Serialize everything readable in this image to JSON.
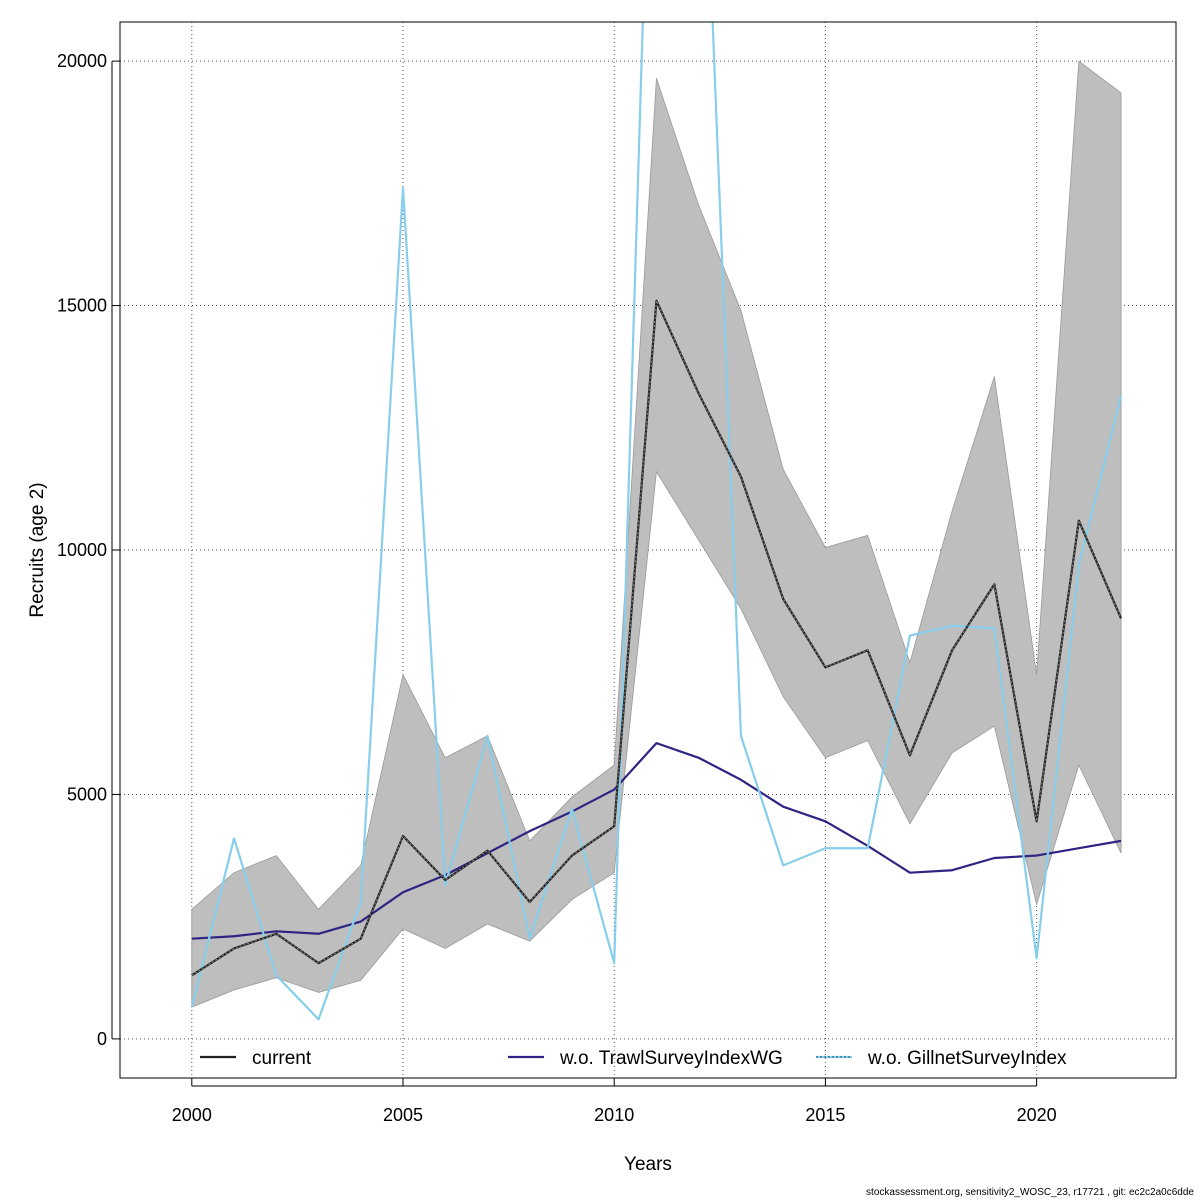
{
  "chart_data": {
    "type": "line",
    "xlabel": "Years",
    "ylabel": "Recruits (age 2)",
    "xlim": [
      1998.3,
      2023.3
    ],
    "ylim": [
      -800,
      20800
    ],
    "x_ticks": [
      2000,
      2005,
      2010,
      2015,
      2020
    ],
    "y_ticks": [
      0,
      5000,
      10000,
      15000,
      20000
    ],
    "grid": true,
    "legend_position": "bottom",
    "x": [
      2000,
      2001,
      2002,
      2003,
      2004,
      2005,
      2006,
      2007,
      2008,
      2009,
      2010,
      2011,
      2012,
      2013,
      2014,
      2015,
      2016,
      2017,
      2018,
      2019,
      2020,
      2021,
      2022
    ],
    "confidence_band": {
      "color": "#bebebe",
      "lower": [
        650,
        1000,
        1250,
        950,
        1200,
        2250,
        1850,
        2350,
        2000,
        2850,
        3400,
        11600,
        10200,
        8800,
        7000,
        5750,
        6100,
        4400,
        5850,
        6400,
        2750,
        5600,
        3800
      ],
      "upper": [
        2650,
        3400,
        3750,
        2650,
        3550,
        7450,
        5750,
        6200,
        4050,
        4950,
        5600,
        19650,
        17050,
        14900,
        11650,
        10050,
        10300,
        7700,
        10800,
        13550,
        7450,
        20000,
        19350
      ]
    },
    "series": [
      {
        "name": "current",
        "color": "#222222",
        "values": [
          1300,
          1850,
          2150,
          1550,
          2050,
          4150,
          3250,
          3850,
          2800,
          3750,
          4350,
          15100,
          13200,
          11500,
          9000,
          7600,
          7950,
          5800,
          7950,
          9300,
          4450,
          10600,
          8600
        ]
      },
      {
        "name": "w.o. TrawlSurveyIndexWG",
        "color": "#2d2483",
        "values": [
          2050,
          2100,
          2200,
          2150,
          2400,
          3000,
          3350,
          3800,
          4250,
          4650,
          5100,
          6050,
          5750,
          5300,
          4750,
          4450,
          3950,
          3400,
          3450,
          3700,
          3750,
          3900,
          4050
        ]
      },
      {
        "name": "w.o. GillnetSurveyIndex",
        "color": "#87ceeb",
        "values": [
          650,
          4100,
          1300,
          400,
          2800,
          17400,
          3150,
          6200,
          2050,
          4700,
          1550,
          30000,
          28000,
          6200,
          3550,
          3900,
          3900,
          8250,
          8450,
          8400,
          1650,
          9700,
          13150
        ]
      }
    ]
  },
  "footer": "stockassessment.org, sensitivity2_WOSC_23, r17721 , git: ec2c2a0c6dde"
}
